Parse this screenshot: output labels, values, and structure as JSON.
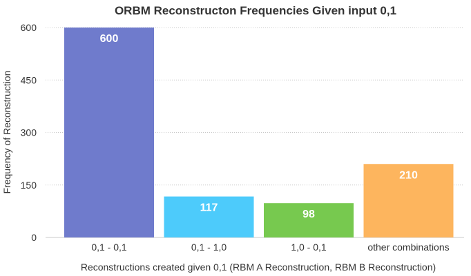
{
  "chart_data": {
    "type": "bar",
    "title": "ORBM Reconstructon Frequencies Given input 0,1",
    "xlabel": "Reconstructions created given 0,1 (RBM A Reconstruction, RBM B Reconstruction)",
    "ylabel": "Frequency of Reconstruction",
    "categories": [
      "0,1 - 0,1",
      "0,1 - 1,0",
      "1,0 - 0,1",
      "other combinations"
    ],
    "values": [
      600,
      117,
      98,
      210
    ],
    "colors": [
      "#6f7bcc",
      "#4dcbfb",
      "#77c94f",
      "#fdb55e"
    ],
    "ylim": [
      0,
      600
    ],
    "yticks": [
      0,
      150,
      300,
      450,
      600
    ],
    "grid": true,
    "legend": "none"
  }
}
